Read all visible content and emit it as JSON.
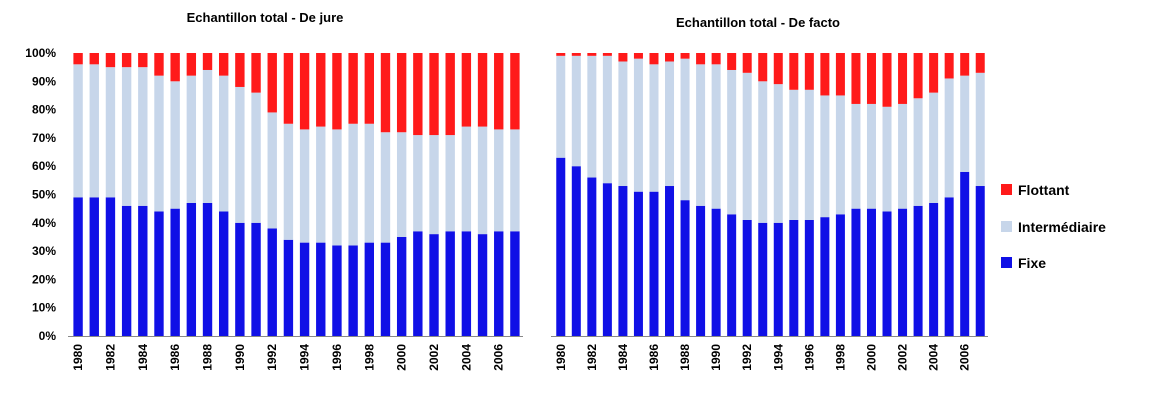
{
  "colors": {
    "flottant": "#ff1a1a",
    "intermediaire": "#c7d6ea",
    "fixe": "#1010e6"
  },
  "legend": [
    "Flottant",
    "Intermédiaire",
    "Fixe"
  ],
  "chart_data": [
    {
      "type": "bar",
      "stacked": true,
      "title": "Echantillon total - De jure",
      "xlabel": "",
      "ylabel": "",
      "ylim": [
        0,
        100
      ],
      "y_ticks": [
        "0%",
        "10%",
        "20%",
        "30%",
        "40%",
        "50%",
        "60%",
        "70%",
        "80%",
        "90%",
        "100%"
      ],
      "categories": [
        "1980",
        "1981",
        "1982",
        "1983",
        "1984",
        "1985",
        "1986",
        "1987",
        "1988",
        "1989",
        "1990",
        "1991",
        "1992",
        "1993",
        "1994",
        "1995",
        "1996",
        "1997",
        "1998",
        "1999",
        "2000",
        "2001",
        "2002",
        "2003",
        "2004",
        "2005",
        "2006",
        "2007"
      ],
      "x_tick_labels": [
        "1980",
        "1982",
        "1984",
        "1986",
        "1988",
        "1990",
        "1992",
        "1994",
        "1996",
        "1998",
        "2000",
        "2002",
        "2004",
        "2006"
      ],
      "series": [
        {
          "name": "Fixe",
          "values": [
            49,
            49,
            49,
            46,
            46,
            44,
            45,
            47,
            47,
            44,
            40,
            40,
            38,
            34,
            33,
            33,
            32,
            32,
            33,
            33,
            35,
            37,
            36,
            37,
            37,
            36,
            37,
            37
          ]
        },
        {
          "name": "Intermédiaire",
          "values": [
            47,
            47,
            46,
            49,
            49,
            48,
            45,
            45,
            47,
            48,
            48,
            46,
            41,
            41,
            40,
            41,
            41,
            43,
            42,
            39,
            37,
            34,
            35,
            34,
            37,
            38,
            36,
            36
          ]
        },
        {
          "name": "Flottant",
          "values": [
            4,
            4,
            5,
            5,
            5,
            8,
            10,
            8,
            6,
            8,
            12,
            14,
            21,
            25,
            27,
            26,
            27,
            25,
            25,
            28,
            28,
            29,
            29,
            29,
            26,
            26,
            27,
            27
          ]
        }
      ]
    },
    {
      "type": "bar",
      "stacked": true,
      "title": "Echantillon total - De facto",
      "xlabel": "",
      "ylabel": "",
      "ylim": [
        0,
        100
      ],
      "categories": [
        "1980",
        "1981",
        "1982",
        "1983",
        "1984",
        "1985",
        "1986",
        "1987",
        "1988",
        "1989",
        "1990",
        "1991",
        "1992",
        "1993",
        "1994",
        "1995",
        "1996",
        "1997",
        "1998",
        "1999",
        "2000",
        "2001",
        "2002",
        "2003",
        "2004",
        "2005",
        "2006",
        "2007"
      ],
      "x_tick_labels": [
        "1980",
        "1982",
        "1984",
        "1986",
        "1988",
        "1990",
        "1992",
        "1994",
        "1996",
        "1998",
        "2000",
        "2002",
        "2004",
        "2006"
      ],
      "series": [
        {
          "name": "Fixe",
          "values": [
            63,
            60,
            56,
            54,
            53,
            51,
            51,
            53,
            48,
            46,
            45,
            43,
            41,
            40,
            40,
            41,
            41,
            42,
            43,
            45,
            45,
            44,
            45,
            46,
            47,
            49,
            58,
            53
          ]
        },
        {
          "name": "Intermédiaire",
          "values": [
            36,
            39,
            43,
            45,
            44,
            47,
            45,
            44,
            50,
            50,
            51,
            51,
            52,
            50,
            49,
            46,
            46,
            43,
            42,
            37,
            37,
            37,
            37,
            38,
            39,
            42,
            34,
            40
          ]
        },
        {
          "name": "Flottant",
          "values": [
            1,
            1,
            1,
            1,
            3,
            2,
            4,
            3,
            2,
            4,
            4,
            6,
            7,
            10,
            11,
            13,
            13,
            15,
            15,
            18,
            18,
            19,
            18,
            16,
            14,
            9,
            8,
            7
          ]
        }
      ]
    }
  ]
}
